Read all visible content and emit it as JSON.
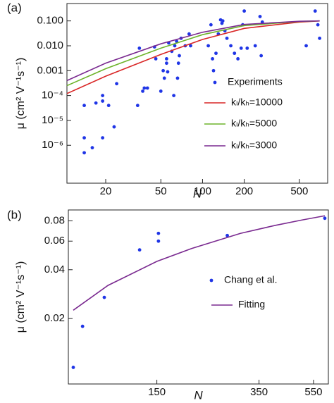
{
  "chart_data": [
    {
      "type": "scatter",
      "panel_label": "(a)",
      "x_label": "N",
      "y_label": "μ (cm² V⁻¹s⁻¹)",
      "xscale": "log",
      "yscale": "log",
      "xlim": [
        10.5,
        800
      ],
      "ylim": [
        3e-08,
        0.5
      ],
      "xticks": [
        20,
        50,
        100,
        200,
        500
      ],
      "yticks": [
        {
          "value": 0.1,
          "label": "0.100"
        },
        {
          "value": 0.01,
          "label": "0.010"
        },
        {
          "value": 0.001,
          "label": "0.001"
        },
        {
          "value": 0.0001,
          "label": "10⁻⁴"
        },
        {
          "value": 1e-05,
          "label": "10⁻⁵"
        },
        {
          "value": 1e-06,
          "label": "10⁻⁶"
        }
      ],
      "series": [
        {
          "name": "Experiments",
          "mode": "markers",
          "color": "#1f35e6",
          "x": [
            14,
            14,
            14,
            16,
            17,
            19,
            19,
            19,
            21,
            23,
            24,
            34,
            35,
            37,
            38,
            40,
            45,
            46,
            50,
            52,
            53,
            55,
            55,
            56,
            57,
            60,
            62,
            63,
            65,
            66,
            67,
            68,
            70,
            75,
            80,
            82,
            110,
            115,
            118,
            120,
            125,
            130,
            135,
            138,
            140,
            145,
            150,
            160,
            170,
            180,
            190,
            195,
            200,
            210,
            240,
            260,
            265,
            270,
            560,
            650,
            680,
            700
          ],
          "values": [
            4e-05,
            2e-06,
            5e-07,
            8e-07,
            5e-05,
            0.0001,
            6e-05,
            2e-06,
            4e-05,
            5.5e-06,
            0.0003,
            4e-05,
            0.008,
            0.00015,
            0.0002,
            0.0002,
            0.009,
            0.003,
            0.00015,
            0.001,
            0.0005,
            0.002,
            0.003,
            0.0009,
            0.013,
            0.006,
            0.0001,
            0.01,
            0.015,
            0.0005,
            0.002,
            0.004,
            0.02,
            0.01,
            0.03,
            0.01,
            0.01,
            0.07,
            0.003,
            0.001,
            0.005,
            0.03,
            0.11,
            0.08,
            0.1,
            0.04,
            0.02,
            0.01,
            0.005,
            0.003,
            0.008,
            0.07,
            0.25,
            0.008,
            0.01,
            0.15,
            0.004,
            0.09,
            0.01,
            0.25,
            0.07,
            0.02
          ]
        },
        {
          "name": "kₗ/kₕ=10000",
          "mode": "lines",
          "color": "#d92626",
          "x": [
            10.5,
            20,
            50,
            100,
            200,
            500,
            700
          ],
          "values": [
            0.00012,
            0.0006,
            0.0045,
            0.018,
            0.05,
            0.09,
            0.1
          ]
        },
        {
          "name": "kₗ/kₕ=5000",
          "mode": "lines",
          "color": "#6db32a",
          "x": [
            10.5,
            20,
            50,
            100,
            200,
            500,
            700
          ],
          "values": [
            0.00025,
            0.0012,
            0.008,
            0.028,
            0.065,
            0.095,
            0.1
          ]
        },
        {
          "name": "kₗ/kₕ=3000",
          "mode": "lines",
          "color": "#7a2a90",
          "x": [
            10.5,
            20,
            50,
            100,
            200,
            500,
            700
          ],
          "values": [
            0.0004,
            0.002,
            0.012,
            0.035,
            0.072,
            0.097,
            0.1
          ]
        }
      ]
    },
    {
      "type": "scatter",
      "panel_label": "(b)",
      "x_label": "N",
      "y_label": "μ (cm² V⁻¹s⁻¹)",
      "xscale": "log",
      "yscale": "log",
      "xlim": [
        72,
        622
      ],
      "ylim": [
        0.0079,
        0.0934
      ],
      "xticks": [
        150,
        350,
        550
      ],
      "yticks": [
        0.02,
        0.04,
        0.06,
        0.08
      ],
      "series": [
        {
          "name": "Chang et al.",
          "mode": "markers",
          "color": "#1f35e6",
          "x": [
            75,
            81,
            97,
            130,
            152,
            152,
            269,
            604
          ],
          "values": [
            0.01,
            0.0179,
            0.027,
            0.053,
            0.067,
            0.06,
            0.065,
            0.083
          ]
        },
        {
          "name": "Fitting",
          "mode": "lines",
          "color": "#7a2a90",
          "x": [
            75,
            100,
            150,
            200,
            300,
            400,
            500,
            604
          ],
          "values": [
            0.0225,
            0.032,
            0.045,
            0.054,
            0.067,
            0.075,
            0.081,
            0.086
          ]
        }
      ]
    }
  ]
}
